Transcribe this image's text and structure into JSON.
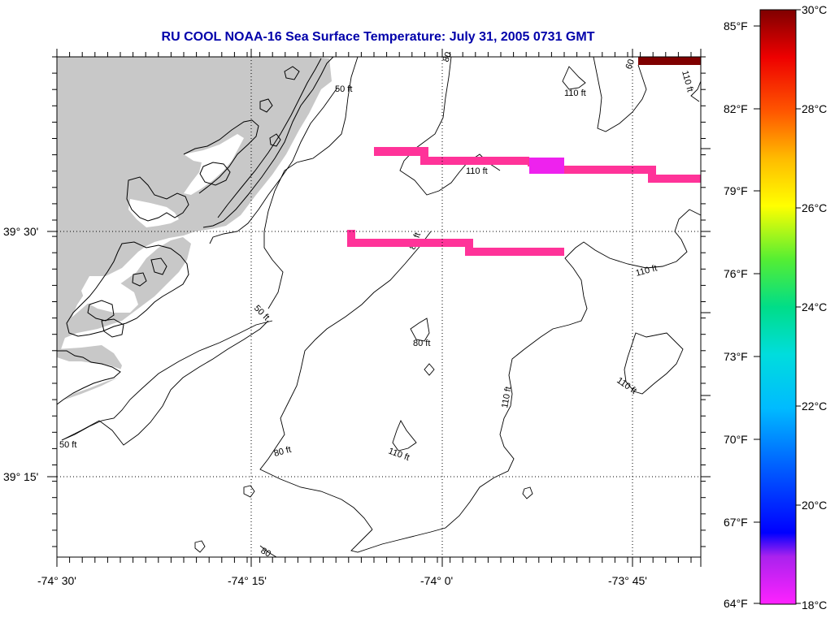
{
  "title": "RU COOL  NOAA-16  Sea Surface Temperature:  July 31, 2005 0731 GMT",
  "map": {
    "lon_ticks": [
      "-74° 30'",
      "-74° 15'",
      "-74° 0'",
      "-73° 45'"
    ],
    "lat_ticks": [
      "39° 30'",
      "39° 15'"
    ],
    "land_color": "#c8c8c8",
    "sst_colors": {
      "pink": "#ff3399",
      "magenta": "#ee22ee",
      "dark_red": "#7f0000"
    },
    "contour_labels": {
      "c50_top": "50 ft",
      "c50_mid": "50 ft",
      "c50_bottom": "50 ft",
      "c80_top": "80",
      "c80_mid": "80 ft",
      "c80_center": "80 ft",
      "c80_lower": "80 ft",
      "c80_bottom": "80",
      "c110_top_right": "110 ft",
      "c110_corner": "110 ft",
      "c110_upper": "110 ft",
      "c110_right": "110 ft",
      "c110_center": "110 ft",
      "c110_lower_right": "110 ft",
      "c110_bottom": "110 ft",
      "c60_corner": "60"
    }
  },
  "colorbar": {
    "f_labels": [
      "85°F",
      "82°F",
      "79°F",
      "76°F",
      "73°F",
      "70°F",
      "67°F",
      "64°F"
    ],
    "c_labels": [
      "30°C",
      "28°C",
      "26°C",
      "24°C",
      "22°C",
      "20°C",
      "18°C"
    ],
    "range_c": [
      18,
      30
    ]
  }
}
